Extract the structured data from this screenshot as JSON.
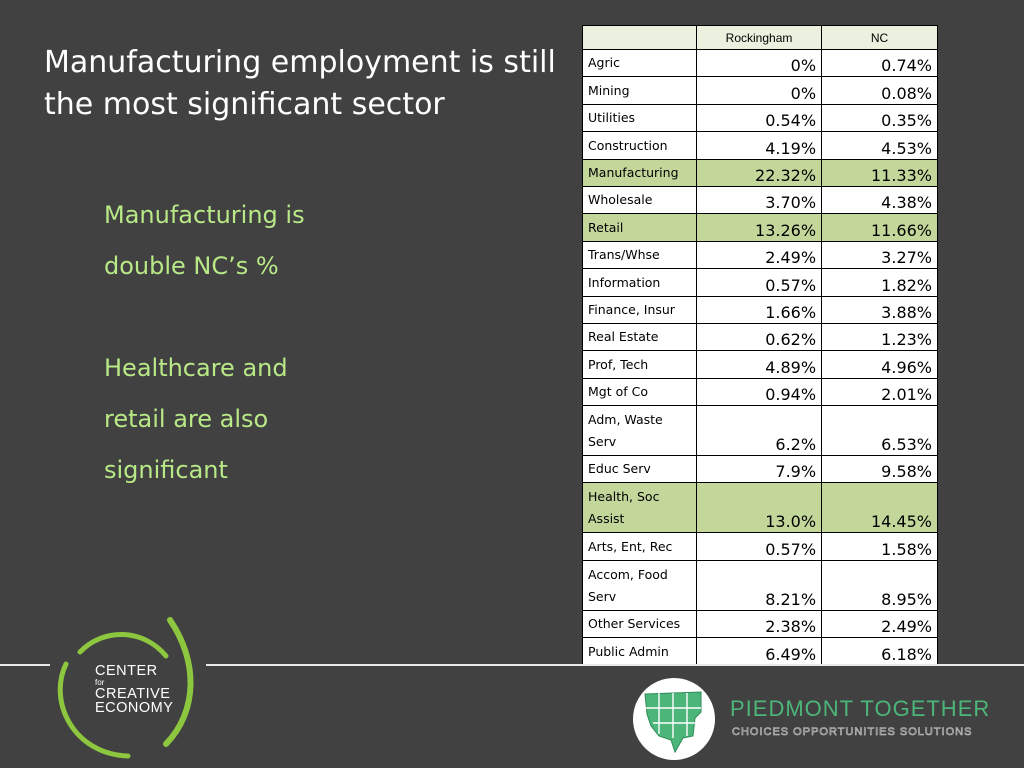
{
  "slide": {
    "title": "Manufacturing employment is still the most significant sector",
    "body": [
      "Manufacturing is",
      "double NC’s %",
      "",
      "Healthcare and",
      "retail are also",
      "significant"
    ]
  },
  "table": {
    "headers": [
      "",
      "Rockingham",
      "NC"
    ],
    "rows": [
      {
        "sector": "Agric",
        "rockingham": "0%",
        "nc": "0.74%"
      },
      {
        "sector": "Mining",
        "rockingham": "0%",
        "nc": "0.08%"
      },
      {
        "sector": "Utilities",
        "rockingham": "0.54%",
        "nc": "0.35%"
      },
      {
        "sector": "Construction",
        "rockingham": "4.19%",
        "nc": "4.53%"
      },
      {
        "sector": "Manufacturing",
        "rockingham": "22.32%",
        "nc": "11.33%",
        "highlight": true
      },
      {
        "sector": "Wholesale",
        "rockingham": "3.70%",
        "nc": "4.38%"
      },
      {
        "sector": "Retail",
        "rockingham": "13.26%",
        "nc": "11.66%",
        "highlight": true
      },
      {
        "sector": "Trans/Whse",
        "rockingham": "2.49%",
        "nc": "3.27%"
      },
      {
        "sector": "Information",
        "rockingham": "0.57%",
        "nc": "1.82%"
      },
      {
        "sector": "Finance, Insur",
        "rockingham": "1.66%",
        "nc": "3.88%"
      },
      {
        "sector": "Real Estate",
        "rockingham": "0.62%",
        "nc": "1.23%"
      },
      {
        "sector": "Prof, Tech",
        "rockingham": "4.89%",
        "nc": "4.96%"
      },
      {
        "sector": "Mgt of Co",
        "rockingham": "0.94%",
        "nc": "2.01%"
      },
      {
        "sector": "Adm, Waste Serv",
        "rockingham": "6.2%",
        "nc": "6.53%",
        "tall": true
      },
      {
        "sector": "Educ Serv",
        "rockingham": "7.9%",
        "nc": "9.58%"
      },
      {
        "sector": "Health, Soc Assist",
        "rockingham": "13.0%",
        "nc": "14.45%",
        "highlight": true,
        "tall": true
      },
      {
        "sector": "Arts, Ent, Rec",
        "rockingham": "0.57%",
        "nc": "1.58%"
      },
      {
        "sector": "Accom, Food Serv",
        "rockingham": "8.21%",
        "nc": "8.95%",
        "tall": true
      },
      {
        "sector": "Other Services",
        "rockingham": "2.38%",
        "nc": "2.49%"
      },
      {
        "sector": "Public Admin",
        "rockingham": "6.49%",
        "nc": "6.18%"
      }
    ]
  },
  "footer": {
    "left_logo": {
      "line1": "CENTER",
      "line2": "for",
      "line3": "CREATIVE",
      "line4": "ECONOMY"
    },
    "right_logo": {
      "title": "PIEDMONT TOGETHER",
      "tagline": "CHOICES OPPORTUNITIES SOLUTIONS"
    }
  },
  "colors": {
    "background": "#414141",
    "body_text": "#b8e986",
    "highlight_row": "#c4d79b",
    "header_row": "#ebf1de",
    "brand_green": "#4cb67a",
    "logo_arc": "#8dc63f"
  }
}
